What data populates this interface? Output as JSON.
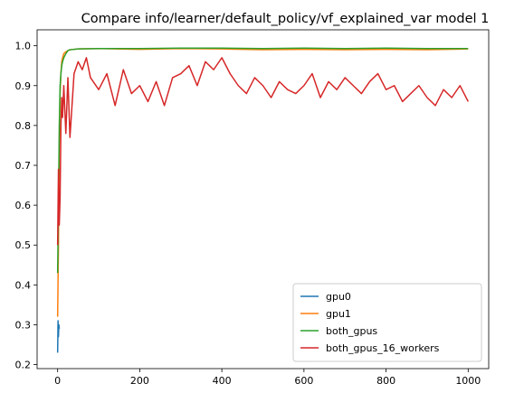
{
  "chart_data": {
    "type": "line",
    "title": "Compare info/learner/default_policy/vf_explained_var model 1",
    "xlabel": "",
    "ylabel": "",
    "xlim": [
      -50,
      1050
    ],
    "ylim": [
      0.19,
      1.04
    ],
    "xticks": [
      0,
      200,
      400,
      600,
      800,
      1000
    ],
    "yticks": [
      0.2,
      0.3,
      0.4,
      0.5,
      0.6,
      0.7,
      0.8,
      0.9,
      1.0
    ],
    "xtick_labels": [
      "0",
      "200",
      "400",
      "600",
      "800",
      "1000"
    ],
    "ytick_labels": [
      "0.2",
      "0.3",
      "0.4",
      "0.5",
      "0.6",
      "0.7",
      "0.8",
      "0.9",
      "1.0"
    ],
    "grid": false,
    "legend_position": "lower-right",
    "series": [
      {
        "name": "gpu0",
        "color": "#1f77b4",
        "x": [
          0,
          1,
          2,
          3,
          4
        ],
        "y": [
          0.23,
          0.31,
          0.27,
          0.3,
          0.29
        ]
      },
      {
        "name": "gpu1",
        "color": "#ff7f0e",
        "x": [
          0,
          2,
          4,
          6,
          8,
          10,
          12,
          15,
          20,
          30,
          50,
          100,
          200,
          300,
          400,
          500,
          600,
          700,
          800,
          900,
          1000
        ],
        "y": [
          0.32,
          0.5,
          0.75,
          0.88,
          0.93,
          0.96,
          0.97,
          0.98,
          0.985,
          0.99,
          0.992,
          0.993,
          0.991,
          0.993,
          0.992,
          0.99,
          0.991,
          0.99,
          0.991,
          0.99,
          0.992
        ]
      },
      {
        "name": "both_gpus",
        "color": "#2ca02c",
        "x": [
          0,
          2,
          4,
          6,
          8,
          10,
          12,
          15,
          20,
          25,
          30,
          50,
          100,
          200,
          300,
          400,
          500,
          600,
          700,
          800,
          900,
          1000
        ],
        "y": [
          0.43,
          0.6,
          0.8,
          0.9,
          0.93,
          0.95,
          0.96,
          0.97,
          0.98,
          0.988,
          0.99,
          0.992,
          0.993,
          0.993,
          0.994,
          0.994,
          0.993,
          0.994,
          0.993,
          0.994,
          0.993,
          0.993
        ]
      },
      {
        "name": "both_gpus_16_workers",
        "color": "#d62728",
        "x": [
          0,
          2,
          4,
          6,
          8,
          10,
          12,
          15,
          20,
          25,
          30,
          40,
          50,
          60,
          70,
          80,
          100,
          120,
          140,
          160,
          180,
          200,
          220,
          240,
          260,
          280,
          300,
          320,
          340,
          360,
          380,
          400,
          420,
          440,
          460,
          480,
          500,
          520,
          540,
          560,
          580,
          600,
          620,
          640,
          660,
          680,
          700,
          720,
          740,
          760,
          780,
          800,
          820,
          840,
          860,
          880,
          900,
          920,
          940,
          960,
          980,
          1000
        ],
        "y": [
          0.5,
          0.69,
          0.55,
          0.62,
          0.8,
          0.87,
          0.82,
          0.9,
          0.78,
          0.92,
          0.77,
          0.93,
          0.96,
          0.94,
          0.97,
          0.92,
          0.89,
          0.93,
          0.85,
          0.94,
          0.88,
          0.9,
          0.86,
          0.91,
          0.85,
          0.92,
          0.93,
          0.95,
          0.9,
          0.96,
          0.94,
          0.97,
          0.93,
          0.9,
          0.88,
          0.92,
          0.9,
          0.87,
          0.91,
          0.89,
          0.88,
          0.9,
          0.93,
          0.87,
          0.91,
          0.89,
          0.92,
          0.9,
          0.88,
          0.91,
          0.93,
          0.89,
          0.9,
          0.86,
          0.88,
          0.9,
          0.87,
          0.85,
          0.89,
          0.87,
          0.9,
          0.86
        ]
      }
    ]
  }
}
